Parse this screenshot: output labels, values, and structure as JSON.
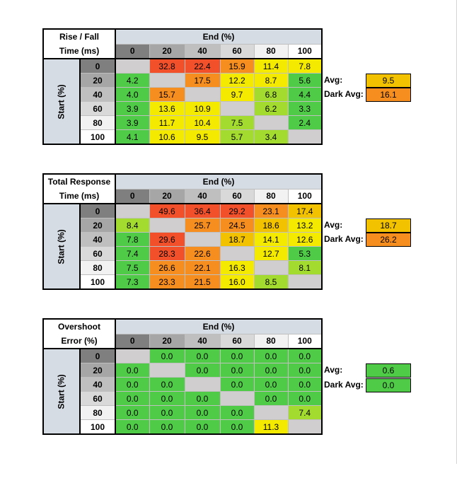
{
  "colors": {
    "diagonal": "#d0cece",
    "green": "#4fcb48",
    "lime": "#a4db2f",
    "yellow": "#f4ea00",
    "amber": "#f2c200",
    "orange": "#f58d1f",
    "red_orange": "#f2502a"
  },
  "tables": [
    {
      "title_line1": "Rise / Fall",
      "title_line2": "Time (ms)",
      "end_label": "End (%)",
      "start_label": "Start (%)",
      "columns": [
        "0",
        "20",
        "40",
        "60",
        "80",
        "100"
      ],
      "rows": [
        {
          "label": "0",
          "cells": [
            "",
            "32.8",
            "22.4",
            "15.9",
            "11.4",
            "7.8"
          ]
        },
        {
          "label": "20",
          "cells": [
            "4.2",
            "",
            "17.5",
            "12.2",
            "8.7",
            "5.6"
          ]
        },
        {
          "label": "40",
          "cells": [
            "4.0",
            "15.7",
            "",
            "9.7",
            "6.8",
            "4.4"
          ]
        },
        {
          "label": "60",
          "cells": [
            "3.9",
            "13.6",
            "10.9",
            "",
            "6.2",
            "3.3"
          ]
        },
        {
          "label": "80",
          "cells": [
            "3.9",
            "11.7",
            "10.4",
            "7.5",
            "",
            "2.4"
          ]
        },
        {
          "label": "100",
          "cells": [
            "4.1",
            "10.6",
            "9.5",
            "5.7",
            "3.4",
            ""
          ]
        }
      ],
      "avg_label": "Avg:",
      "avg_value": "9.5",
      "dark_avg_label": "Dark Avg:",
      "dark_avg_value": "16.1"
    },
    {
      "title_line1": "Total Response",
      "title_line2": "Time (ms)",
      "end_label": "End (%)",
      "start_label": "Start (%)",
      "columns": [
        "0",
        "20",
        "40",
        "60",
        "80",
        "100"
      ],
      "rows": [
        {
          "label": "0",
          "cells": [
            "",
            "49.6",
            "36.4",
            "29.2",
            "23.1",
            "17.4"
          ]
        },
        {
          "label": "20",
          "cells": [
            "8.4",
            "",
            "25.7",
            "24.5",
            "18.6",
            "13.2"
          ]
        },
        {
          "label": "40",
          "cells": [
            "7.8",
            "29.6",
            "",
            "18.7",
            "14.1",
            "12.6"
          ]
        },
        {
          "label": "60",
          "cells": [
            "7.4",
            "28.3",
            "22.6",
            "",
            "12.7",
            "5.3"
          ]
        },
        {
          "label": "80",
          "cells": [
            "7.5",
            "26.6",
            "22.1",
            "16.3",
            "",
            "8.1"
          ]
        },
        {
          "label": "100",
          "cells": [
            "7.3",
            "23.3",
            "21.5",
            "16.0",
            "8.5",
            ""
          ]
        }
      ],
      "avg_label": "Avg:",
      "avg_value": "18.7",
      "dark_avg_label": "Dark Avg:",
      "dark_avg_value": "26.2"
    },
    {
      "title_line1": "Overshoot",
      "title_line2": "Error (%)",
      "end_label": "End (%)",
      "start_label": "Start (%)",
      "columns": [
        "0",
        "20",
        "40",
        "60",
        "80",
        "100"
      ],
      "rows": [
        {
          "label": "0",
          "cells": [
            "",
            "0.0",
            "0.0",
            "0.0",
            "0.0",
            "0.0"
          ]
        },
        {
          "label": "20",
          "cells": [
            "0.0",
            "",
            "0.0",
            "0.0",
            "0.0",
            "0.0"
          ]
        },
        {
          "label": "40",
          "cells": [
            "0.0",
            "0.0",
            "",
            "0.0",
            "0.0",
            "0.0"
          ]
        },
        {
          "label": "60",
          "cells": [
            "0.0",
            "0.0",
            "0.0",
            "",
            "0.0",
            "0.0"
          ]
        },
        {
          "label": "80",
          "cells": [
            "0.0",
            "0.0",
            "0.0",
            "0.0",
            "",
            "7.4"
          ]
        },
        {
          "label": "100",
          "cells": [
            "0.0",
            "0.0",
            "0.0",
            "0.0",
            "11.3",
            ""
          ]
        }
      ],
      "avg_label": "Avg:",
      "avg_value": "0.6",
      "dark_avg_label": "Dark Avg:",
      "dark_avg_value": "0.0"
    }
  ],
  "cell_colors": [
    [
      [
        "diagonal",
        "red_orange",
        "red_orange",
        "orange",
        "yellow",
        "yellow"
      ],
      [
        "green",
        "diagonal",
        "orange",
        "yellow",
        "yellow",
        "green"
      ],
      [
        "green",
        "orange",
        "diagonal",
        "yellow",
        "lime",
        "green"
      ],
      [
        "green",
        "yellow",
        "yellow",
        "diagonal",
        "lime",
        "green"
      ],
      [
        "green",
        "yellow",
        "yellow",
        "lime",
        "diagonal",
        "green"
      ],
      [
        "green",
        "yellow",
        "yellow",
        "lime",
        "lime",
        "diagonal"
      ]
    ],
    [
      [
        "diagonal",
        "red_orange",
        "red_orange",
        "red_orange",
        "orange",
        "amber"
      ],
      [
        "lime",
        "diagonal",
        "orange",
        "orange",
        "amber",
        "yellow"
      ],
      [
        "green",
        "red_orange",
        "diagonal",
        "amber",
        "yellow",
        "yellow"
      ],
      [
        "green",
        "red_orange",
        "orange",
        "diagonal",
        "yellow",
        "green"
      ],
      [
        "green",
        "orange",
        "orange",
        "yellow",
        "diagonal",
        "lime"
      ],
      [
        "green",
        "orange",
        "orange",
        "yellow",
        "lime",
        "diagonal"
      ]
    ],
    [
      [
        "diagonal",
        "green",
        "green",
        "green",
        "green",
        "green"
      ],
      [
        "green",
        "diagonal",
        "green",
        "green",
        "green",
        "green"
      ],
      [
        "green",
        "green",
        "diagonal",
        "green",
        "green",
        "green"
      ],
      [
        "green",
        "green",
        "green",
        "diagonal",
        "green",
        "green"
      ],
      [
        "green",
        "green",
        "green",
        "green",
        "diagonal",
        "lime"
      ],
      [
        "green",
        "green",
        "green",
        "green",
        "yellow",
        "diagonal"
      ]
    ]
  ],
  "avg_colors": [
    [
      "amber",
      "orange"
    ],
    [
      "amber",
      "orange"
    ],
    [
      "green",
      "green"
    ]
  ]
}
